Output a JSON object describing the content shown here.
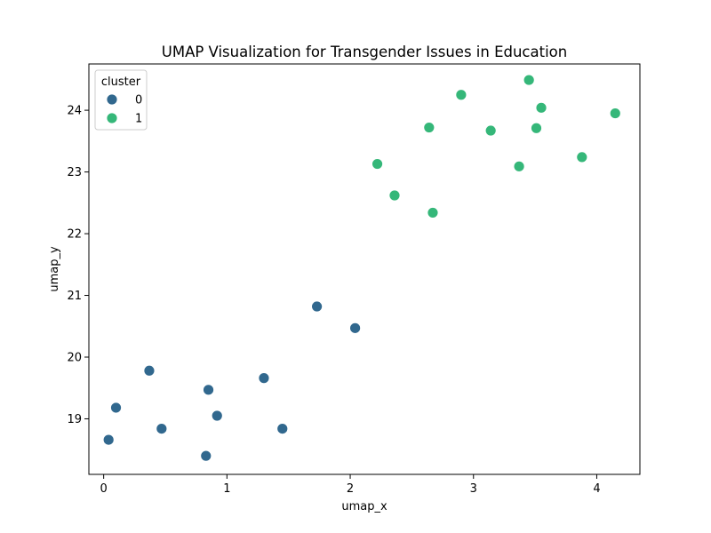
{
  "chart_data": {
    "type": "scatter",
    "title": "UMAP Visualization for Transgender Issues in Education",
    "xlabel": "umap_x",
    "ylabel": "umap_y",
    "xlim": [
      -0.12,
      4.35
    ],
    "ylim": [
      18.1,
      24.75
    ],
    "xticks": [
      0,
      1,
      2,
      3,
      4
    ],
    "yticks": [
      19,
      20,
      21,
      22,
      23,
      24
    ],
    "grid": false,
    "legend": {
      "title": "cluster",
      "placement": "top-left"
    },
    "series": [
      {
        "name": "0",
        "color": "#31688e",
        "points": [
          {
            "x": 0.04,
            "y": 18.66
          },
          {
            "x": 0.1,
            "y": 19.18
          },
          {
            "x": 0.37,
            "y": 19.78
          },
          {
            "x": 0.47,
            "y": 18.84
          },
          {
            "x": 0.83,
            "y": 18.4
          },
          {
            "x": 0.85,
            "y": 19.47
          },
          {
            "x": 0.92,
            "y": 19.05
          },
          {
            "x": 1.3,
            "y": 19.66
          },
          {
            "x": 1.45,
            "y": 18.84
          },
          {
            "x": 1.73,
            "y": 20.82
          },
          {
            "x": 2.04,
            "y": 20.47
          }
        ]
      },
      {
        "name": "1",
        "color": "#35b779",
        "points": [
          {
            "x": 2.22,
            "y": 23.13
          },
          {
            "x": 2.36,
            "y": 22.62
          },
          {
            "x": 2.64,
            "y": 23.72
          },
          {
            "x": 2.67,
            "y": 22.34
          },
          {
            "x": 2.9,
            "y": 24.25
          },
          {
            "x": 3.14,
            "y": 23.67
          },
          {
            "x": 3.37,
            "y": 23.09
          },
          {
            "x": 3.45,
            "y": 24.49
          },
          {
            "x": 3.51,
            "y": 23.71
          },
          {
            "x": 3.55,
            "y": 24.04
          },
          {
            "x": 3.88,
            "y": 23.24
          },
          {
            "x": 4.15,
            "y": 23.95
          }
        ]
      }
    ]
  }
}
